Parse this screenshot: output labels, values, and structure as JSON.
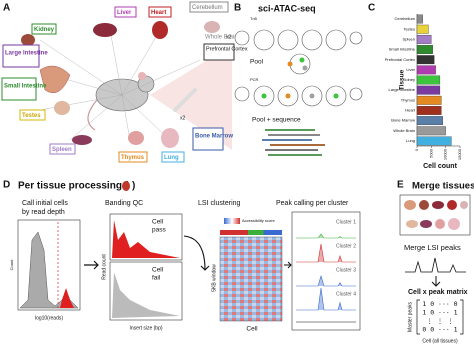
{
  "panel_a": {
    "label": "A",
    "kidney": "Kidney",
    "liver": "Liver",
    "heart": "Heart",
    "cerebellum": "Cerebellum",
    "whole_brain": "Whole Brain",
    "prefrontal": "Prefrontal Cortex",
    "large_intestine": "Large Intestine",
    "small_intestine": "Small Intestine",
    "testes": "Testes",
    "spleen": "Spleen",
    "thymus": "Thymus",
    "lung": "Lung",
    "bone_marrow": "Bone Marrow",
    "multipliers": [
      "x2",
      "x2"
    ]
  },
  "panel_b": {
    "label": "B",
    "title": "sci-ATAC-seq",
    "tn5": "Tn5",
    "pool": "Pool",
    "pcr": "PCR",
    "pool_sequence": "Pool + sequence"
  },
  "panel_c": {
    "label": "C",
    "chart": {
      "type": "bar",
      "ylabel": "Tissue",
      "xlabel": "Cell count",
      "categories": [
        "Cerebellum",
        "Testes",
        "Spleen",
        "Small Intestine",
        "Prefrontal Cortex",
        "Liver",
        "Kidney",
        "Large Intestine",
        "Thymus",
        "Heart",
        "Bone Marrow",
        "Whole Brain",
        "Lung"
      ],
      "values": [
        2000,
        4000,
        5000,
        5500,
        6000,
        6500,
        8000,
        8000,
        8500,
        8500,
        9000,
        10000,
        12000
      ],
      "colors": [
        "#8a8a8a",
        "#e8d23a",
        "#a27cc4",
        "#2e8b2e",
        "#333333",
        "#b03cb0",
        "#3cc43c",
        "#7a3aa0",
        "#e58a20",
        "#a0301e",
        "#5a7fa8",
        "#9a9a9a",
        "#3fb0e0"
      ],
      "xlim": [
        0,
        15000
      ],
      "xticks": [
        0,
        5000,
        10000,
        15000
      ]
    }
  },
  "panel_d": {
    "label": "D",
    "title": "Per tissue processing (",
    "title_close": ")",
    "call_cells": [
      "Call initial cells",
      "by read depth"
    ],
    "count": "Count",
    "log_reads": "log10(reads)",
    "banding": "Banding QC",
    "cell_pass": [
      "Cell",
      "pass"
    ],
    "cell_fail": [
      "Cell",
      "fail"
    ],
    "read_count": "Read count",
    "insert_size": "Insert size (bp)",
    "lsi": "LSI clustering",
    "accessibility": "Accessibility score",
    "window": "5KB window",
    "cell": "Cell",
    "peak_calling": "Peak calling per cluster",
    "clusters": [
      "Cluster 1",
      "Cluster 2",
      "Cluster 3",
      "Cluster 4"
    ]
  },
  "panel_e": {
    "label": "E",
    "title": "Merge tissues",
    "merge_peaks": "Merge LSI peaks",
    "matrix_title": "Cell x peak matrix",
    "master_peaks": "Master peaks",
    "matrix_rows": [
      "1 0 ··· 0",
      "1 0 ··· 1",
      "⋮ ⋮    ⋮",
      "0 0 ··· 1"
    ],
    "cell_all": "Cell (all tissues)"
  }
}
